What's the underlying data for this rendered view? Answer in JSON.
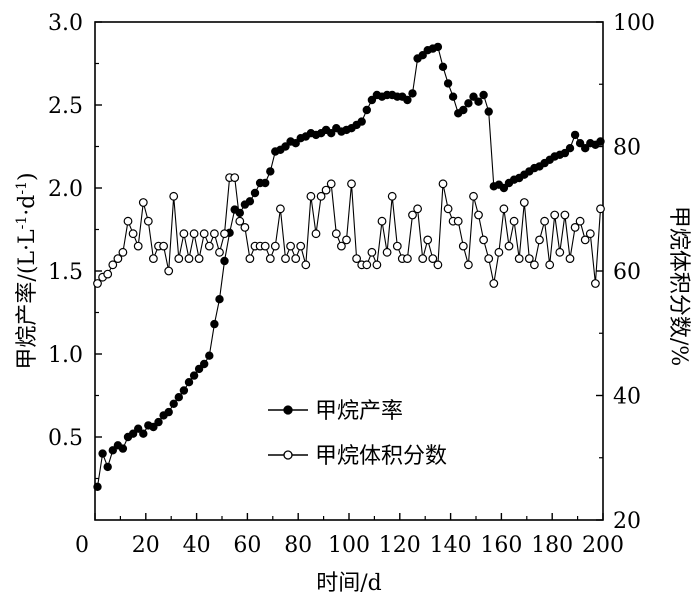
{
  "chart_data": {
    "type": "line",
    "xlabel": "时间/d",
    "ylabel_left": "甲烷产率/(L·L",
    "ylabel_left_sup1": "-1",
    "ylabel_left_mid": "·d",
    "ylabel_left_sup2": "-1",
    "ylabel_left_end": ")",
    "ylabel_right": "甲烷体积分数/%",
    "xlim": [
      0,
      200
    ],
    "ylim_left": [
      0,
      3.0
    ],
    "ylim_right": [
      20,
      100
    ],
    "xticks": [
      "0",
      "20",
      "40",
      "60",
      "80",
      "100",
      "120",
      "140",
      "160",
      "180",
      "200"
    ],
    "yticks_left": [
      "0.5",
      "1.0",
      "1.5",
      "2.0",
      "2.5",
      "3.0"
    ],
    "yticks_right": [
      "20",
      "40",
      "60",
      "80",
      "100"
    ],
    "legend_position": "center-left",
    "grid": false,
    "series": [
      {
        "name": "甲烷产率",
        "axis": "left",
        "marker": "filled-circle",
        "x": [
          1,
          3,
          5,
          7,
          9,
          11,
          13,
          15,
          17,
          19,
          21,
          23,
          25,
          27,
          29,
          31,
          33,
          35,
          37,
          39,
          41,
          43,
          45,
          47,
          49,
          51,
          53,
          55,
          57,
          59,
          61,
          63,
          65,
          67,
          69,
          71,
          73,
          75,
          77,
          79,
          81,
          83,
          85,
          87,
          89,
          91,
          93,
          95,
          97,
          99,
          101,
          103,
          105,
          107,
          109,
          111,
          113,
          115,
          117,
          119,
          121,
          123,
          125,
          127,
          129,
          131,
          133,
          135,
          137,
          139,
          141,
          143,
          145,
          147,
          149,
          151,
          153,
          155,
          157,
          159,
          161,
          163,
          165,
          167,
          169,
          171,
          173,
          175,
          177,
          179,
          181,
          183,
          185,
          187,
          189,
          191,
          193,
          195,
          197,
          199
        ],
        "y": [
          0.2,
          0.4,
          0.32,
          0.42,
          0.45,
          0.43,
          0.5,
          0.52,
          0.55,
          0.52,
          0.57,
          0.56,
          0.59,
          0.63,
          0.65,
          0.7,
          0.74,
          0.78,
          0.83,
          0.87,
          0.91,
          0.94,
          0.99,
          1.18,
          1.33,
          1.56,
          1.73,
          1.87,
          1.85,
          1.9,
          1.92,
          1.97,
          2.03,
          2.03,
          2.1,
          2.22,
          2.23,
          2.25,
          2.28,
          2.27,
          2.3,
          2.31,
          2.33,
          2.32,
          2.33,
          2.35,
          2.33,
          2.36,
          2.34,
          2.35,
          2.36,
          2.38,
          2.4,
          2.47,
          2.53,
          2.56,
          2.55,
          2.56,
          2.56,
          2.55,
          2.55,
          2.53,
          2.57,
          2.78,
          2.8,
          2.83,
          2.84,
          2.85,
          2.73,
          2.63,
          2.55,
          2.45,
          2.47,
          2.51,
          2.55,
          2.52,
          2.56,
          2.46,
          2.01,
          2.02,
          2.0,
          2.03,
          2.05,
          2.06,
          2.08,
          2.1,
          2.12,
          2.13,
          2.15,
          2.17,
          2.19,
          2.2,
          2.21,
          2.24,
          2.32,
          2.27,
          2.24,
          2.27,
          2.26,
          2.28
        ]
      },
      {
        "name": "甲烷体积分数",
        "axis": "right",
        "marker": "open-circle",
        "x": [
          1,
          3,
          5,
          7,
          9,
          11,
          13,
          15,
          17,
          19,
          21,
          23,
          25,
          27,
          29,
          31,
          33,
          35,
          37,
          39,
          41,
          43,
          45,
          47,
          49,
          51,
          53,
          55,
          57,
          59,
          61,
          63,
          65,
          67,
          69,
          71,
          73,
          75,
          77,
          79,
          81,
          83,
          85,
          87,
          89,
          91,
          93,
          95,
          97,
          99,
          101,
          103,
          105,
          107,
          109,
          111,
          113,
          115,
          117,
          119,
          121,
          123,
          125,
          127,
          129,
          131,
          133,
          135,
          137,
          139,
          141,
          143,
          145,
          147,
          149,
          151,
          153,
          155,
          157,
          159,
          161,
          163,
          165,
          167,
          169,
          171,
          173,
          175,
          177,
          179,
          181,
          183,
          185,
          187,
          189,
          191,
          193,
          195,
          197,
          199
        ],
        "y": [
          58,
          59,
          59.5,
          61,
          62,
          63,
          68,
          66,
          64,
          71,
          68,
          62,
          64,
          64,
          60,
          72,
          62,
          66,
          62,
          66,
          62,
          66,
          64,
          66,
          63,
          66,
          75,
          75,
          68,
          67,
          62,
          64,
          64,
          64,
          62,
          64,
          70,
          62,
          64,
          62,
          64,
          61,
          72,
          66,
          72,
          73,
          74,
          66,
          64,
          65,
          74,
          62,
          61,
          61,
          63,
          61,
          68,
          63,
          72,
          64,
          62,
          62,
          69,
          70,
          62,
          65,
          62,
          61,
          74,
          70,
          68,
          68,
          64,
          61,
          72,
          69,
          65,
          62,
          58,
          63,
          70,
          64,
          68,
          62,
          71,
          62,
          61,
          65,
          68,
          61,
          69,
          63,
          69,
          62,
          67,
          68,
          65,
          66,
          58,
          70
        ]
      }
    ]
  }
}
